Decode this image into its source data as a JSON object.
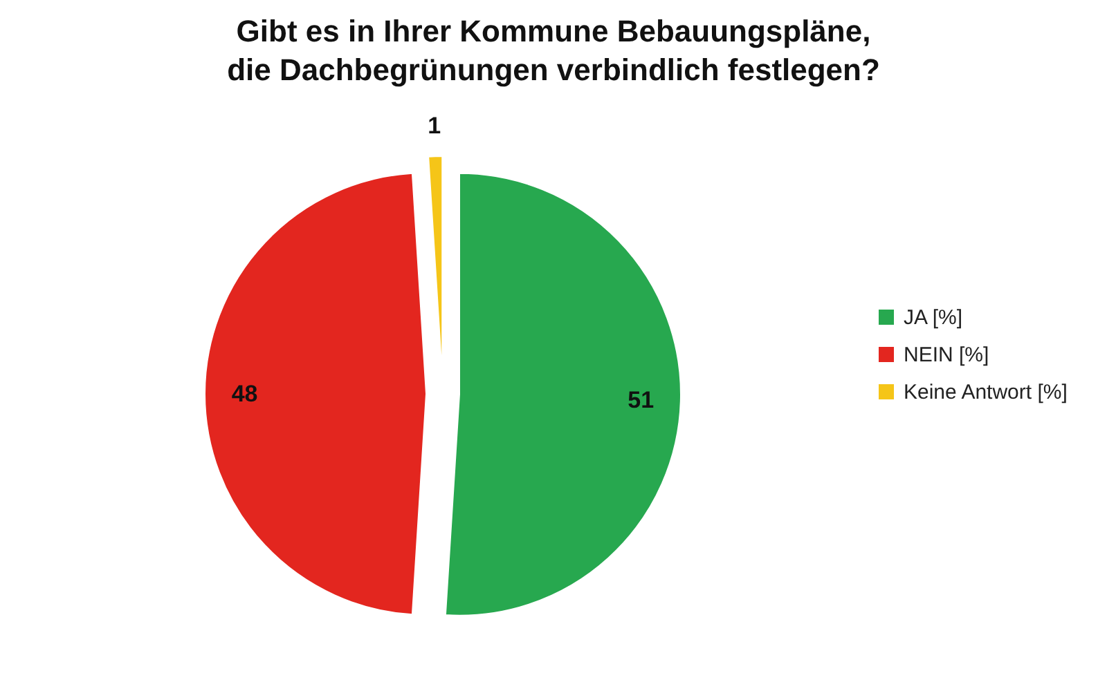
{
  "chart_data": {
    "type": "pie",
    "title": "Gibt es in Ihrer Kommune Bebauungspläne,\ndie Dachbegrünungen verbindlich festlegen?",
    "categories": [
      "JA [%]",
      "NEIN [%]",
      "Keine Antwort [%]"
    ],
    "values": [
      51,
      48,
      1
    ],
    "colors": [
      "#27a84f",
      "#e3261f",
      "#f5c518"
    ],
    "data_labels": true,
    "legend": "right"
  }
}
